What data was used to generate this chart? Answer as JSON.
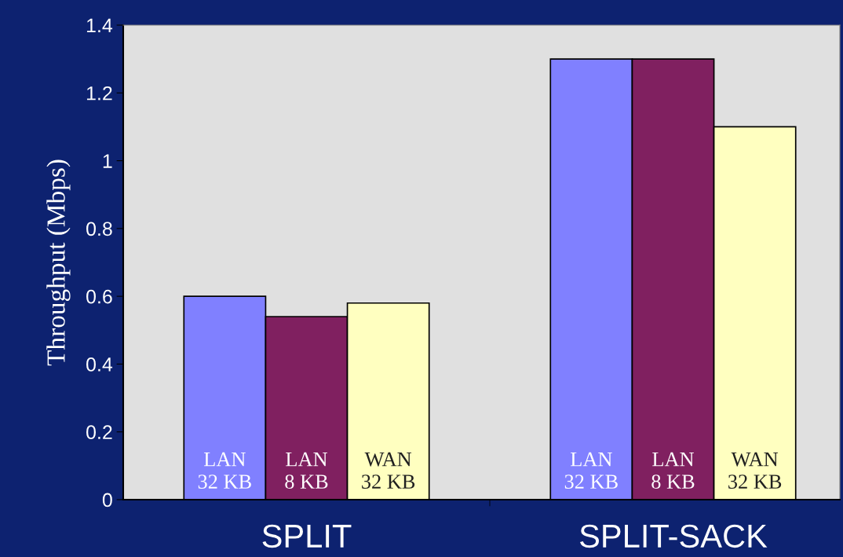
{
  "chart_data": {
    "type": "bar",
    "ylabel": "Throughput (Mbps)",
    "categories": [
      "SPLIT",
      "SPLIT-SACK"
    ],
    "series": [
      {
        "name": "LAN\n32 KB",
        "color": "#8080ff",
        "values": [
          0.6,
          1.3
        ]
      },
      {
        "name": "LAN\n8 KB",
        "color": "#802060",
        "values": [
          0.54,
          1.3
        ]
      },
      {
        "name": "WAN\n32 KB",
        "color": "#ffffc0",
        "values": [
          0.58,
          1.1
        ]
      }
    ],
    "ylim": [
      0,
      1.4
    ],
    "yticks": [
      0,
      0.2,
      0.4,
      0.6,
      0.8,
      1,
      1.2,
      1.4
    ],
    "grid": false
  }
}
